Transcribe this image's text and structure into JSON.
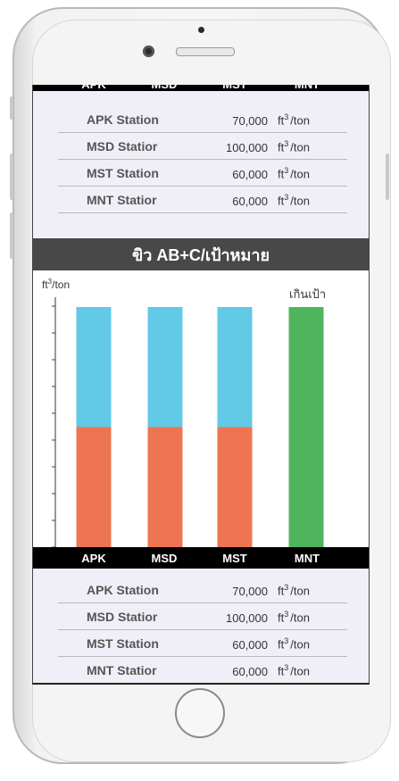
{
  "tabs": [
    "APK",
    "MSD",
    "MST",
    "MNT"
  ],
  "top_table": [
    {
      "name": "APK Station",
      "value": "70,000",
      "unit": "ft",
      "unit_sup": "3",
      "unit_suffix": "/ton"
    },
    {
      "name": "MSD Statior",
      "value": "100,000",
      "unit": "ft",
      "unit_sup": "3",
      "unit_suffix": "/ton"
    },
    {
      "name": "MST Station",
      "value": "60,000",
      "unit": "ft",
      "unit_sup": "3",
      "unit_suffix": "/ton"
    },
    {
      "name": "MNT Statior",
      "value": "60,000",
      "unit": "ft",
      "unit_sup": "3",
      "unit_suffix": "/ton"
    }
  ],
  "section_title": "ขิว AB+C/เป้าหมาย",
  "chart_data": {
    "type": "bar",
    "categories": [
      "APK",
      "MSD",
      "MST",
      "MNT"
    ],
    "y_unit": "ft",
    "y_unit_sup": "3",
    "y_unit_suffix": "/ton",
    "annotation": "เกินเป้า",
    "stacked": true,
    "series": [
      {
        "color": "#ee7551",
        "values": [
          0.5,
          0.5,
          0.5,
          0
        ]
      },
      {
        "color": "#62c9e6",
        "values": [
          0.5,
          0.5,
          0.5,
          0
        ]
      },
      {
        "color": "#4fb55d",
        "values": [
          0,
          0,
          0,
          1.0
        ]
      }
    ],
    "ylim": [
      0,
      1.0
    ],
    "grid": false
  },
  "bottom_table": [
    {
      "name": "APK Station",
      "value": "70,000",
      "unit": "ft",
      "unit_sup": "3",
      "unit_suffix": "/ton"
    },
    {
      "name": "MSD Statior",
      "value": "100,000",
      "unit": "ft",
      "unit_sup": "3",
      "unit_suffix": "/ton"
    },
    {
      "name": "MST Station",
      "value": "60,000",
      "unit": "ft",
      "unit_sup": "3",
      "unit_suffix": "/ton"
    },
    {
      "name": "MNT Statior",
      "value": "60,000",
      "unit": "ft",
      "unit_sup": "3",
      "unit_suffix": "/ton"
    }
  ]
}
